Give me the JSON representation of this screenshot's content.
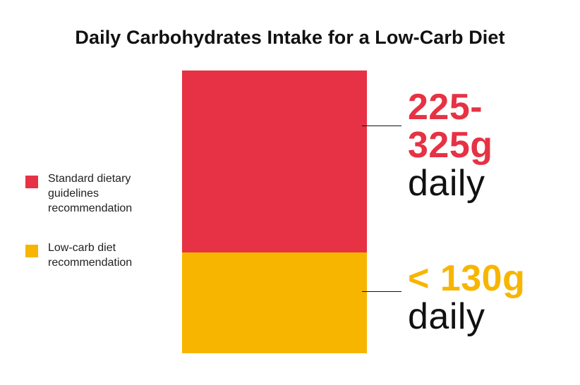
{
  "chart_data": {
    "type": "bar",
    "stacked": true,
    "title": "Daily Carbohydrates Intake for a Low-Carb Diet",
    "xlabel": "",
    "ylabel": "",
    "grid": false,
    "legend_position": "left",
    "series": [
      {
        "name": "Standard dietary guidelines recommendation",
        "color": "#e63244",
        "range": [
          225,
          325
        ],
        "annotation_value": "225-325g",
        "annotation_value_lines": [
          "225-",
          "325g"
        ],
        "annotation_unit": "daily"
      },
      {
        "name": "Low-carb diet recommendation",
        "color": "#f7b500",
        "range": [
          0,
          130
        ],
        "annotation_value": "< 130g",
        "annotation_value_lines": [
          "< 130g"
        ],
        "annotation_unit": "daily"
      }
    ]
  }
}
